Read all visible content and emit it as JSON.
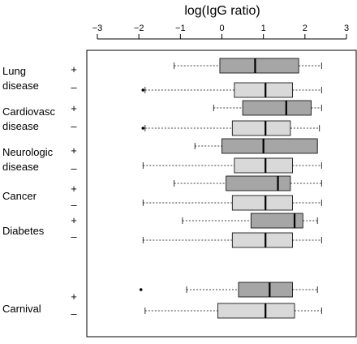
{
  "chart_data": {
    "type": "boxplot",
    "orientation": "horizontal",
    "xlabel": "log(IgG ratio)",
    "xlim": [
      -3,
      3
    ],
    "x_ticks": [
      "-3",
      "-2",
      "-1",
      "0",
      "1",
      "2",
      "3"
    ],
    "x_tick_values": [
      -3,
      -2,
      -1,
      0,
      1,
      2,
      3
    ],
    "x_axis_position": "top",
    "colors": {
      "plus": "#a6a6a6",
      "minus": "#d9d9d9",
      "line": "#000000"
    },
    "groups": [
      {
        "label": "Lung disease",
        "rows": [
          {
            "sign": "+",
            "whisker_low": -1.15,
            "q1": -0.05,
            "median": 0.8,
            "q3": 1.85,
            "whisker_high": 2.4,
            "outliers": []
          },
          {
            "sign": "-",
            "whisker_low": -1.85,
            "q1": 0.3,
            "median": 1.05,
            "q3": 1.7,
            "whisker_high": 2.4,
            "outliers": [
              -1.9
            ]
          }
        ]
      },
      {
        "label": "Cardiovasc disease",
        "rows": [
          {
            "sign": "+",
            "whisker_low": -0.2,
            "q1": 0.5,
            "median": 1.55,
            "q3": 2.15,
            "whisker_high": 2.4,
            "outliers": []
          },
          {
            "sign": "-",
            "whisker_low": -1.85,
            "q1": 0.25,
            "median": 1.05,
            "q3": 1.65,
            "whisker_high": 2.35,
            "outliers": [
              -1.9
            ]
          }
        ]
      },
      {
        "label": "Neurologic disease",
        "rows": [
          {
            "sign": "+",
            "whisker_low": -0.65,
            "q1": 0.0,
            "median": 1.0,
            "q3": 2.3,
            "whisker_high": 2.3,
            "outliers": []
          },
          {
            "sign": "-",
            "whisker_low": -1.9,
            "q1": 0.3,
            "median": 1.05,
            "q3": 1.7,
            "whisker_high": 2.4,
            "outliers": []
          }
        ]
      },
      {
        "label": "Cancer",
        "rows": [
          {
            "sign": "+",
            "whisker_low": -1.15,
            "q1": 0.1,
            "median": 1.35,
            "q3": 1.65,
            "whisker_high": 2.4,
            "outliers": []
          },
          {
            "sign": "-",
            "whisker_low": -1.9,
            "q1": 0.25,
            "median": 1.05,
            "q3": 1.7,
            "whisker_high": 2.4,
            "outliers": []
          }
        ]
      },
      {
        "label": "Diabetes",
        "rows": [
          {
            "sign": "+",
            "whisker_low": -0.95,
            "q1": 0.7,
            "median": 1.75,
            "q3": 1.95,
            "whisker_high": 2.3,
            "outliers": []
          },
          {
            "sign": "-",
            "whisker_low": -1.9,
            "q1": 0.25,
            "median": 1.05,
            "q3": 1.7,
            "whisker_high": 2.4,
            "outliers": []
          }
        ]
      },
      {
        "label": "Carnival",
        "rows": [
          {
            "sign": "+",
            "whisker_low": -0.85,
            "q1": 0.4,
            "median": 1.15,
            "q3": 1.7,
            "whisker_high": 2.3,
            "outliers": [
              -1.95
            ]
          },
          {
            "sign": "-",
            "whisker_low": -1.85,
            "q1": -0.1,
            "median": 1.05,
            "q3": 1.75,
            "whisker_high": 2.4,
            "outliers": []
          }
        ]
      }
    ]
  }
}
